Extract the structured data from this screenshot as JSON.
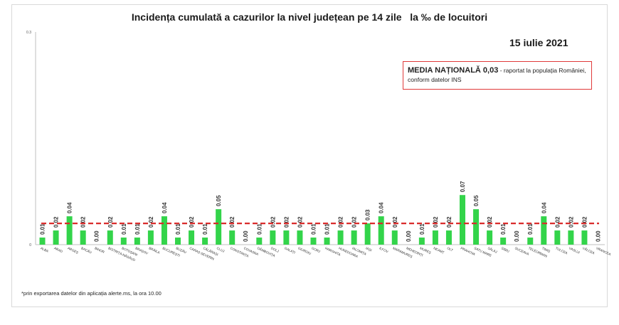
{
  "title": "Incidența cumulată a cazurilor la nivel județean pe 14 zile   la ‰ de locuitori",
  "date": "15 iulie 2021",
  "media": {
    "label": "MEDIA NAȚIONALĂ 0,03",
    "line1": " - raportat la populația României,",
    "line2": "conform datelor INS"
  },
  "footnote": "*prin exportarea datelor din aplicația alerte.ms, la ora 10.00",
  "colors": {
    "bar": "#33d44a",
    "reference": "#d92b2b"
  },
  "chart_data": {
    "type": "bar",
    "categories": [
      "ALBA",
      "ARAD",
      "ARGEȘ",
      "BACĂU",
      "BIHOR",
      "BISTRIȚA-NĂSĂUD",
      "BOTOȘANI",
      "BRAȘOV",
      "BRĂILA",
      "BUCUREȘTI",
      "BUZĂU",
      "CARAȘ-SEVERIN",
      "CĂLĂRAȘI",
      "CLUJ",
      "CONSTANȚA",
      "COVASNA",
      "DÂMBOVIȚA",
      "DOLJ",
      "GALAȚI",
      "GIURGIU",
      "GORJ",
      "HARGHITA",
      "HUNEDOARA",
      "IALOMIȚA",
      "IAȘI",
      "ILFOV",
      "MARAMUREȘ",
      "MEHEDINȚI",
      "MUREȘ",
      "NEAMȚ",
      "OLT",
      "PRAHOVA",
      "SATU MARE",
      "SĂLAJ",
      "SIBIU",
      "SUCEAVA",
      "TELEORMAN",
      "TIMIȘ",
      "TULCEA",
      "VASLUI",
      "VÂLCEA",
      "VRANCEA"
    ],
    "values": [
      0.01,
      0.02,
      0.04,
      0.02,
      0.0,
      0.02,
      0.01,
      0.01,
      0.02,
      0.04,
      0.01,
      0.02,
      0.01,
      0.05,
      0.02,
      0.0,
      0.01,
      0.02,
      0.02,
      0.02,
      0.01,
      0.01,
      0.02,
      0.02,
      0.03,
      0.04,
      0.02,
      0.0,
      0.01,
      0.02,
      0.02,
      0.07,
      0.05,
      0.02,
      0.01,
      0.0,
      0.01,
      0.04,
      0.02,
      0.02,
      0.02,
      0.0
    ],
    "data_labels": [
      "0.01",
      "0.02",
      "0.04",
      "0.02",
      "0.00",
      "0.02",
      "0.01",
      "0.01",
      "0.02",
      "0.04",
      "0.01",
      "0.02",
      "0.01",
      "0.05",
      "0.02",
      "0.00",
      "0.01",
      "0.02",
      "0.02",
      "0.02",
      "0.01",
      "0.01",
      "0.02",
      "0.02",
      "0.03",
      "0.04",
      "0.02",
      "0.00",
      "0.01",
      "0.02",
      "0.02",
      "0.07",
      "0.05",
      "0.02",
      "0.01",
      "0.00",
      "0.01",
      "0.04",
      "0.02",
      "0.02",
      "0.02",
      "0.00"
    ],
    "reference_line": 0.03,
    "ylim": [
      0,
      0.3
    ],
    "yticks": [
      "0",
      "0.3"
    ],
    "grid": false
  }
}
